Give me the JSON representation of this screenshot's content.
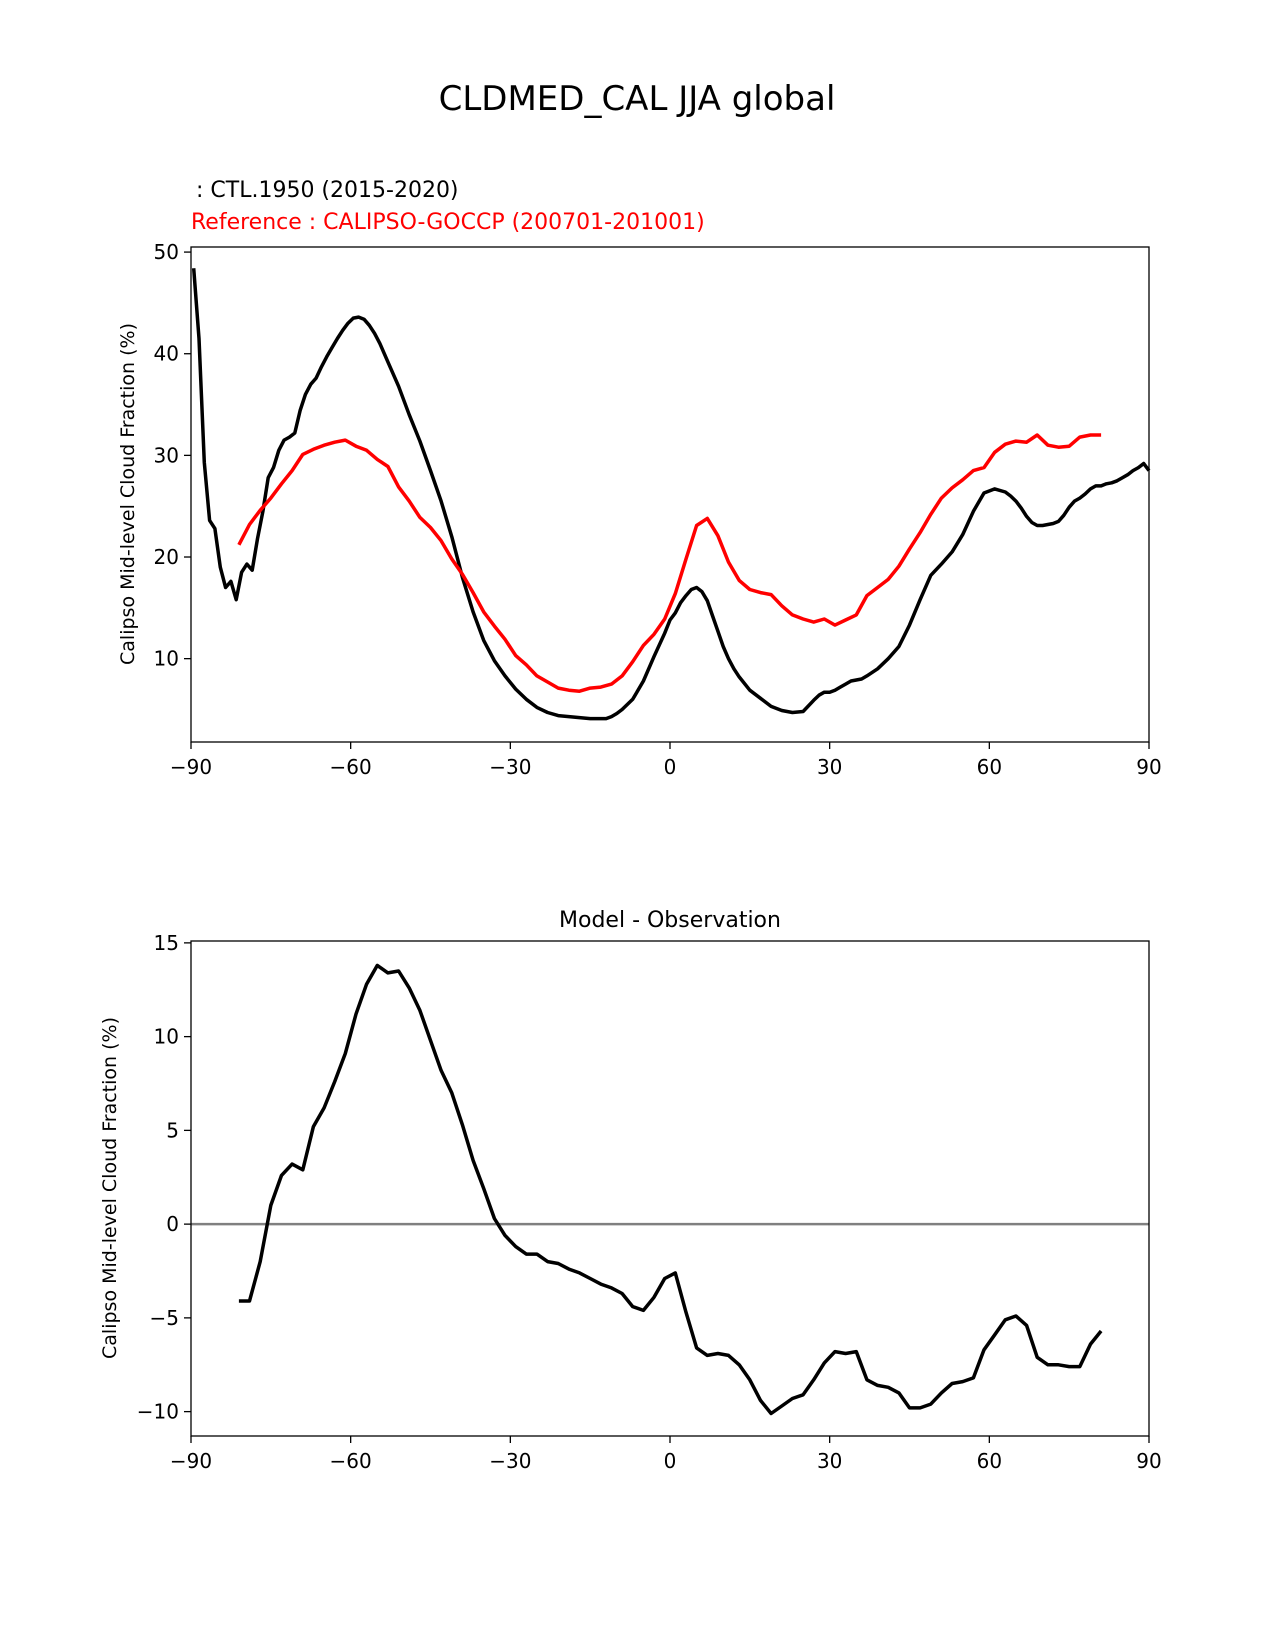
{
  "suptitle": "CLDMED_CAL JJA global",
  "chart_data": [
    {
      "type": "line",
      "model_label": " : CTL.1950 (2015-2020)",
      "reference_label": "Reference : CALIPSO-GOCCP (200701-201001)",
      "xlabel": "",
      "ylabel": "Calipso Mid-level Cloud Fraction (%)",
      "xlim": [
        -90,
        90
      ],
      "ylim": [
        1.8,
        50.5
      ],
      "xticks": [
        -90,
        -60,
        -30,
        0,
        30,
        60,
        90
      ],
      "xtick_labels": [
        "−90",
        "−60",
        "−30",
        "0",
        "30",
        "60",
        "90"
      ],
      "yticks": [
        10,
        20,
        30,
        40,
        50
      ],
      "ytick_labels": [
        "10",
        "20",
        "30",
        "40",
        "50"
      ],
      "series": [
        {
          "name": "CTL.1950 (2015-2020)",
          "color": "#000000",
          "x": [
            -89.5,
            -88.5,
            -87.5,
            -86.5,
            -85.5,
            -84.5,
            -83.5,
            -82.5,
            -81.5,
            -80.5,
            -79.5,
            -78.5,
            -77.5,
            -76.5,
            -75.5,
            -74.5,
            -73.5,
            -72.5,
            -71.5,
            -70.5,
            -69.5,
            -68.5,
            -67.5,
            -66.5,
            -65.5,
            -64.5,
            -63.5,
            -62.5,
            -61.5,
            -60.5,
            -59.5,
            -58.5,
            -57.5,
            -56.5,
            -55.5,
            -54.5,
            -53,
            -51,
            -49,
            -47,
            -45,
            -43,
            -41,
            -39,
            -37,
            -35,
            -33,
            -31,
            -29,
            -27,
            -25,
            -23,
            -21,
            -19,
            -17,
            -15,
            -13,
            -12,
            -11,
            -10,
            -9,
            -7,
            -5,
            -3,
            -1,
            0,
            1,
            2,
            3,
            4,
            5,
            6,
            7,
            8,
            9,
            10,
            11,
            12,
            13,
            15,
            17,
            19,
            21,
            23,
            25,
            27,
            28,
            29,
            30,
            31,
            32,
            33,
            34,
            35,
            36,
            37,
            39,
            41,
            43,
            45,
            47,
            49,
            51,
            53,
            55,
            57,
            59,
            61,
            63,
            64,
            65,
            66,
            67,
            68,
            69,
            70,
            71,
            72,
            73,
            74,
            75,
            76,
            77,
            78,
            79,
            80,
            81,
            82,
            83,
            84,
            85,
            86,
            87,
            88,
            89,
            90
          ],
          "values": [
            48.4,
            41.5,
            29.3,
            23.6,
            22.8,
            19.0,
            17.0,
            17.6,
            15.8,
            18.5,
            19.3,
            18.7,
            21.8,
            24.5,
            27.8,
            28.8,
            30.5,
            31.5,
            31.8,
            32.2,
            34.4,
            36.0,
            37.0,
            37.6,
            38.7,
            39.7,
            40.6,
            41.5,
            42.3,
            43.0,
            43.5,
            43.6,
            43.4,
            42.8,
            42.0,
            41.0,
            39.2,
            36.8,
            34.0,
            31.4,
            28.5,
            25.5,
            22.0,
            18.0,
            14.6,
            11.8,
            9.8,
            8.3,
            7.0,
            6.0,
            5.2,
            4.7,
            4.4,
            4.3,
            4.2,
            4.1,
            4.1,
            4.1,
            4.3,
            4.6,
            5.0,
            6.0,
            7.8,
            10.2,
            12.5,
            13.8,
            14.5,
            15.5,
            16.2,
            16.8,
            17.0,
            16.6,
            15.7,
            14.2,
            12.7,
            11.2,
            10.0,
            9.0,
            8.2,
            6.9,
            6.1,
            5.3,
            4.9,
            4.7,
            4.8,
            5.9,
            6.4,
            6.7,
            6.7,
            6.9,
            7.2,
            7.5,
            7.8,
            7.9,
            8.0,
            8.3,
            9.0,
            10.0,
            11.2,
            13.3,
            15.8,
            18.2,
            19.3,
            20.5,
            22.2,
            24.5,
            26.3,
            26.7,
            26.4,
            26.0,
            25.5,
            24.8,
            24.0,
            23.4,
            23.1,
            23.1,
            23.2,
            23.3,
            23.5,
            24.1,
            24.9,
            25.5,
            25.8,
            26.2,
            26.7,
            27.0,
            27.0,
            27.2,
            27.3,
            27.5,
            27.8,
            28.1,
            28.5,
            28.8,
            29.2,
            28.5
          ],
          "stroke_width": 3.5
        },
        {
          "name": "CALIPSO-GOCCP (200701-201001)",
          "color": "#ff0000",
          "x": [
            -81,
            -79,
            -77,
            -75,
            -73,
            -71,
            -69,
            -67,
            -65,
            -63,
            -61,
            -59,
            -57,
            -55,
            -53,
            -51,
            -49,
            -47,
            -45,
            -43,
            -41,
            -39,
            -37,
            -35,
            -33,
            -31,
            -29,
            -27,
            -25,
            -23,
            -21,
            -19,
            -17,
            -15,
            -13,
            -11,
            -9,
            -7,
            -5,
            -3,
            -1,
            1,
            3,
            5,
            7,
            9,
            11,
            13,
            15,
            17,
            19,
            21,
            23,
            25,
            27,
            29,
            31,
            33,
            35,
            37,
            39,
            41,
            43,
            45,
            47,
            49,
            51,
            53,
            55,
            57,
            59,
            61,
            63,
            65,
            67,
            69,
            71,
            73,
            75,
            77,
            79,
            81
          ],
          "values": [
            21.2,
            23.2,
            24.6,
            25.8,
            27.2,
            28.5,
            30.1,
            30.6,
            31.0,
            31.3,
            31.5,
            30.9,
            30.5,
            29.6,
            28.9,
            26.9,
            25.5,
            23.9,
            22.9,
            21.6,
            19.8,
            18.3,
            16.5,
            14.6,
            13.2,
            11.9,
            10.3,
            9.4,
            8.3,
            7.7,
            7.1,
            6.9,
            6.8,
            7.1,
            7.2,
            7.5,
            8.3,
            9.7,
            11.3,
            12.4,
            13.9,
            16.4,
            19.8,
            23.1,
            23.8,
            22.1,
            19.5,
            17.7,
            16.8,
            16.5,
            16.3,
            15.2,
            14.3,
            13.9,
            13.6,
            13.9,
            13.3,
            13.8,
            14.3,
            16.2,
            17.0,
            17.8,
            19.1,
            20.8,
            22.4,
            24.2,
            25.8,
            26.8,
            27.6,
            28.5,
            28.8,
            30.3,
            31.1,
            31.4,
            31.3,
            32.0,
            31.0,
            30.8,
            30.9,
            31.8,
            32.0,
            32.0
          ],
          "stroke_width": 3.5
        }
      ]
    },
    {
      "type": "line",
      "title": "Model - Observation",
      "xlabel": "",
      "ylabel": "Calipso Mid-level Cloud Fraction (%)",
      "xlim": [
        -90,
        90
      ],
      "ylim": [
        -11.3,
        15.1
      ],
      "xticks": [
        -90,
        -60,
        -30,
        0,
        30,
        60,
        90
      ],
      "xtick_labels": [
        "−90",
        "−60",
        "−30",
        "0",
        "30",
        "60",
        "90"
      ],
      "yticks": [
        -10,
        -5,
        0,
        5,
        10,
        15
      ],
      "ytick_labels": [
        "−10",
        "−5",
        "0",
        "5",
        "10",
        "15"
      ],
      "reference_line": {
        "y": 0,
        "color": "#808080"
      },
      "series": [
        {
          "name": "Model - Observation",
          "color": "#000000",
          "x": [
            -81,
            -79,
            -77,
            -75,
            -73,
            -71,
            -69,
            -67,
            -65,
            -63,
            -61,
            -59,
            -57,
            -55,
            -53,
            -51,
            -49,
            -47,
            -45,
            -43,
            -41,
            -39,
            -37,
            -35,
            -33,
            -31,
            -29,
            -27,
            -25,
            -23,
            -21,
            -19,
            -17,
            -15,
            -13,
            -11,
            -9,
            -7,
            -5,
            -3,
            -1,
            1,
            3,
            5,
            7,
            9,
            11,
            13,
            15,
            17,
            19,
            21,
            23,
            25,
            27,
            29,
            31,
            33,
            35,
            37,
            39,
            41,
            43,
            45,
            47,
            49,
            51,
            53,
            55,
            57,
            59,
            61,
            63,
            65,
            67,
            69,
            71,
            73,
            75,
            77,
            79,
            81
          ],
          "values": [
            -4.1,
            -4.1,
            -2.0,
            1.0,
            2.6,
            3.2,
            2.9,
            5.2,
            6.2,
            7.6,
            9.1,
            11.2,
            12.8,
            13.8,
            13.4,
            13.5,
            12.6,
            11.4,
            9.8,
            8.2,
            7.0,
            5.3,
            3.4,
            1.9,
            0.3,
            -0.6,
            -1.2,
            -1.6,
            -1.6,
            -2.0,
            -2.1,
            -2.4,
            -2.6,
            -2.9,
            -3.2,
            -3.4,
            -3.7,
            -4.4,
            -4.6,
            -3.9,
            -2.9,
            -2.6,
            -4.7,
            -6.6,
            -7.0,
            -6.9,
            -7.0,
            -7.5,
            -8.3,
            -9.4,
            -10.1,
            -9.7,
            -9.3,
            -9.1,
            -8.3,
            -7.4,
            -6.8,
            -6.9,
            -6.8,
            -8.3,
            -8.6,
            -8.7,
            -9.0,
            -9.8,
            -9.8,
            -9.6,
            -9.0,
            -8.5,
            -8.4,
            -8.2,
            -6.7,
            -5.9,
            -5.1,
            -4.9,
            -5.4,
            -7.1,
            -7.5,
            -7.5,
            -7.6,
            -7.6,
            -6.4,
            -5.7
          ],
          "stroke_width": 3.5
        }
      ]
    }
  ]
}
